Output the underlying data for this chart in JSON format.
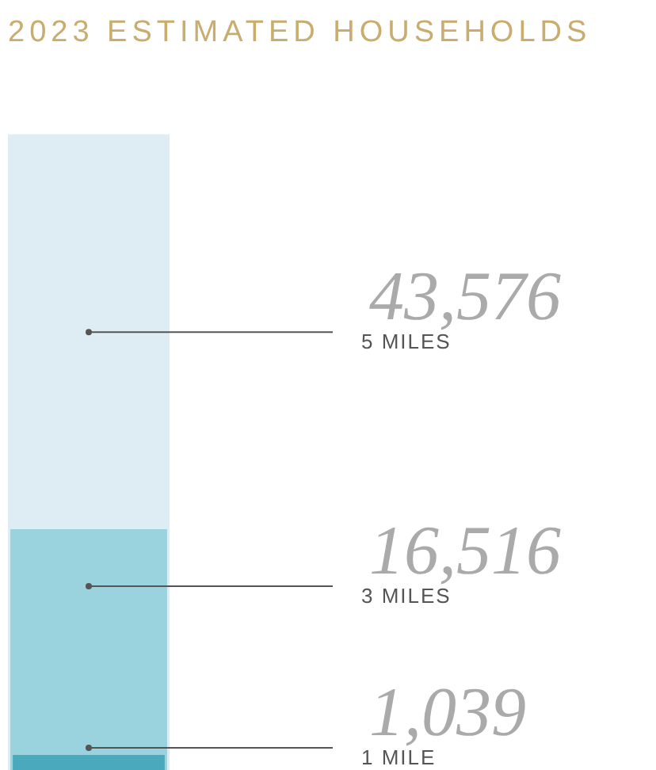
{
  "chart_data": {
    "type": "bar",
    "title": "2023 ESTIMATED HOUSEHOLDS",
    "categories": [
      null
    ],
    "legend": false,
    "series": [
      {
        "name": "5 MILES",
        "color": "#deedf3",
        "values": [
          43576
        ],
        "value_labels": [
          "43,576"
        ]
      },
      {
        "name": "3 MILES",
        "color": "#9ad2de",
        "values": [
          16516
        ],
        "value_labels": [
          "16,516"
        ]
      },
      {
        "name": "1 MILE",
        "color": "#4aa9bd",
        "values": [
          1039
        ],
        "value_labels": [
          "1,039"
        ]
      }
    ]
  }
}
